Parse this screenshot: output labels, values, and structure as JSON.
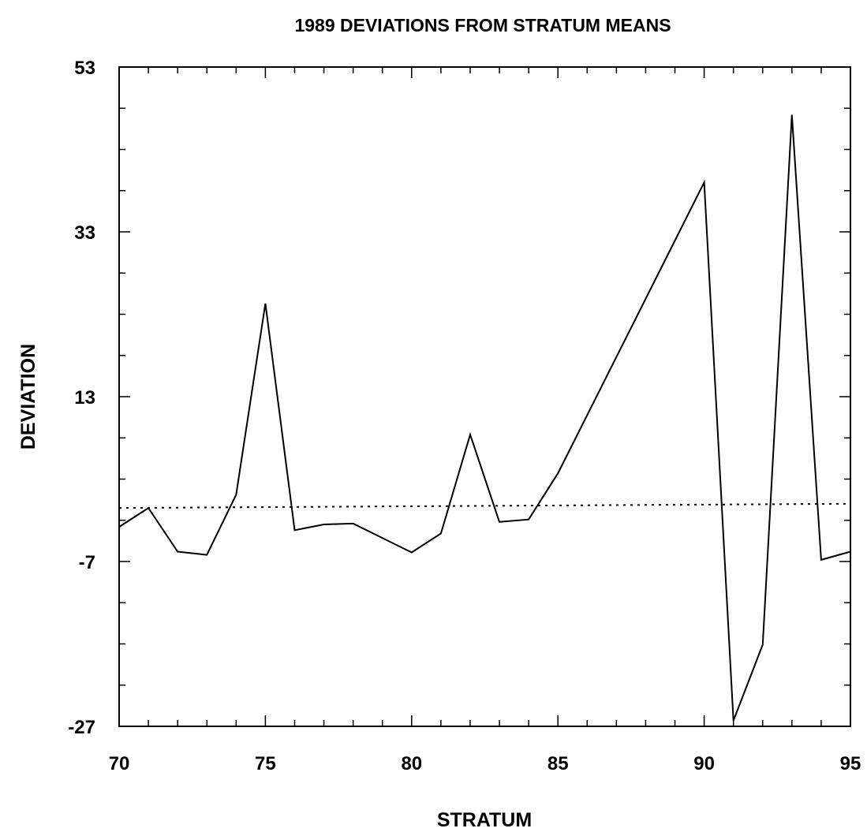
{
  "chart_data": {
    "type": "line",
    "title": "1989 DEVIATIONS FROM STRATUM MEANS",
    "xlabel": "STRATUM",
    "ylabel": "DEVIATION",
    "xlim": [
      70,
      95
    ],
    "ylim": [
      -27,
      53
    ],
    "xticks": [
      70,
      75,
      80,
      85,
      90,
      95
    ],
    "xtick_labels": [
      "70",
      "75",
      "80",
      "85",
      "90",
      "95"
    ],
    "yticks": [
      -27,
      -7,
      13,
      33,
      53
    ],
    "ytick_labels": [
      "-27",
      "-7",
      "13",
      "33",
      "53"
    ],
    "grid": false,
    "series": [
      {
        "style": "solid",
        "x": [
          70,
          71,
          72,
          73,
          74,
          75,
          76,
          77,
          78,
          80,
          81,
          82,
          83,
          84,
          85,
          90,
          91,
          92,
          93,
          94,
          95
        ],
        "y": [
          -2.8,
          -0.5,
          -5.8,
          -6.2,
          1.1,
          24.3,
          -3.2,
          -2.5,
          -2.4,
          -5.9,
          -3.6,
          8.4,
          -2.2,
          -1.9,
          3.7,
          39.0,
          -26.3,
          -17.1,
          47.2,
          -6.8,
          -5.8
        ]
      },
      {
        "style": "dotted",
        "x": [
          70,
          95
        ],
        "y": [
          -0.5,
          0.0
        ]
      }
    ]
  }
}
